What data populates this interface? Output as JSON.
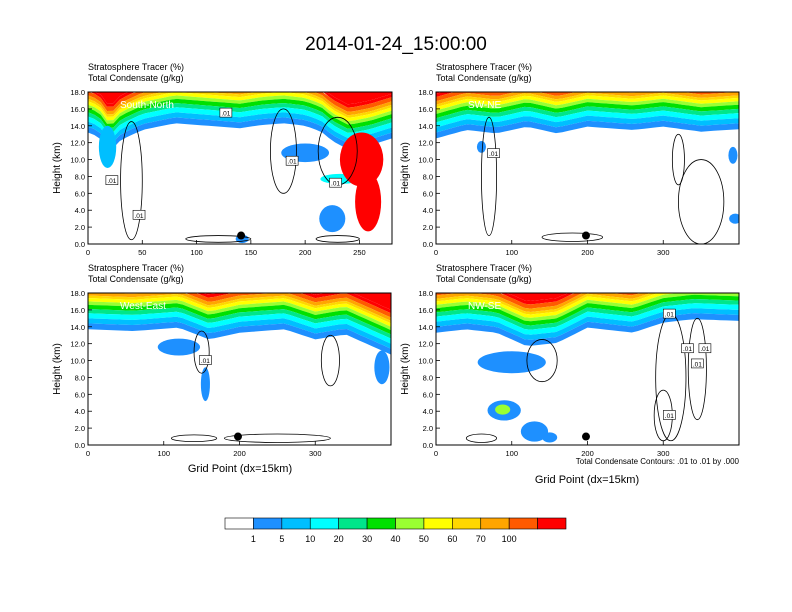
{
  "title": "2014-01-24_15:00:00",
  "panel_headers": {
    "line1": "Stratosphere Tracer   (%)",
    "line2": "Total Condensate   (g/kg)"
  },
  "ylabel": "Height (km)",
  "xlabel": "Grid Point (dx=15km)",
  "contour_info": "Total Condensate Contours: .01 to .01 by .000",
  "colors": {
    "levels": [
      "#ffffff",
      "#1e90ff",
      "#00bfff",
      "#00ffff",
      "#00e68a",
      "#00e000",
      "#9aff32",
      "#ffff00",
      "#ffd700",
      "#ffa500",
      "#ff5a00",
      "#ff0000"
    ],
    "contour": "#000000"
  },
  "colorbar": {
    "labels": [
      "1",
      "5",
      "10",
      "20",
      "30",
      "40",
      "50",
      "60",
      "70",
      "100"
    ]
  },
  "chart_data": [
    {
      "type": "heatmap",
      "name": "South-North",
      "xlim": [
        0,
        280
      ],
      "ylim": [
        0,
        18
      ],
      "xticks": [
        "0",
        "50",
        "100",
        "150",
        "200",
        "250"
      ],
      "xtick_values": [
        0,
        50,
        100,
        150,
        200,
        250
      ],
      "yticks": [
        "0.0",
        "2.0",
        "4.0",
        "6.0",
        "8.0",
        "10.0",
        "12.0",
        "14.0",
        "16.0",
        "18.0"
      ],
      "tracer_top_km": [
        [
          0,
          14.5
        ],
        [
          10,
          14.0
        ],
        [
          20,
          12.2
        ],
        [
          30,
          13.6
        ],
        [
          50,
          14.8
        ],
        [
          80,
          15.6
        ],
        [
          110,
          15.3
        ],
        [
          140,
          15.0
        ],
        [
          160,
          15.4
        ],
        [
          180,
          15.6
        ],
        [
          200,
          15.3
        ],
        [
          215,
          14.6
        ],
        [
          225,
          13.5
        ],
        [
          240,
          12.5
        ],
        [
          260,
          13.0
        ],
        [
          280,
          13.8
        ]
      ],
      "markers": [
        {
          "x": 141,
          "y": 1.0
        }
      ],
      "contour_labels": [
        {
          "text": ".01",
          "x": 127,
          "y": 15.5
        },
        {
          "text": ".01",
          "x": 47,
          "y": 3.4
        },
        {
          "text": ".01",
          "x": 22,
          "y": 7.5
        },
        {
          "text": ".01",
          "x": 188,
          "y": 9.8
        },
        {
          "text": ".01",
          "x": 228,
          "y": 7.2
        }
      ]
    },
    {
      "type": "heatmap",
      "name": "SW-NE",
      "xlim": [
        0,
        400
      ],
      "ylim": [
        0,
        18
      ],
      "xticks": [
        "0",
        "100",
        "200",
        "300"
      ],
      "xtick_values": [
        0,
        100,
        200,
        300
      ],
      "yticks": [
        "0.0",
        "2.0",
        "4.0",
        "6.0",
        "8.0",
        "10.0",
        "12.0",
        "14.0",
        "16.0",
        "18.0"
      ],
      "tracer_top_km": [
        [
          0,
          13.8
        ],
        [
          40,
          14.8
        ],
        [
          80,
          14.4
        ],
        [
          120,
          15.2
        ],
        [
          160,
          14.4
        ],
        [
          200,
          15.2
        ],
        [
          260,
          14.8
        ],
        [
          300,
          15.2
        ],
        [
          350,
          14.6
        ],
        [
          400,
          14.9
        ]
      ],
      "markers": [
        {
          "x": 198,
          "y": 1.0
        }
      ],
      "contour_labels": [
        {
          "text": ".01",
          "x": 76,
          "y": 10.7
        }
      ]
    },
    {
      "type": "heatmap",
      "name": "West-East",
      "xlim": [
        0,
        400
      ],
      "ylim": [
        0,
        18
      ],
      "xticks": [
        "0",
        "100",
        "200",
        "300"
      ],
      "xtick_values": [
        0,
        100,
        200,
        300
      ],
      "yticks": [
        "0.0",
        "2.0",
        "4.0",
        "6.0",
        "8.0",
        "10.0",
        "12.0",
        "14.0",
        "16.0",
        "18.0"
      ],
      "tracer_top_km": [
        [
          0,
          15.0
        ],
        [
          60,
          14.8
        ],
        [
          120,
          15.2
        ],
        [
          160,
          13.8
        ],
        [
          200,
          14.6
        ],
        [
          260,
          15.0
        ],
        [
          300,
          13.8
        ],
        [
          340,
          14.4
        ],
        [
          400,
          12.0
        ]
      ],
      "markers": [
        {
          "x": 198,
          "y": 1.0
        }
      ],
      "contour_labels": [
        {
          "text": ".01",
          "x": 155,
          "y": 10.0
        }
      ]
    },
    {
      "type": "heatmap",
      "name": "NW-SE",
      "xlim": [
        0,
        400
      ],
      "ylim": [
        0,
        18
      ],
      "xticks": [
        "0",
        "100",
        "200",
        "300"
      ],
      "xtick_values": [
        0,
        100,
        200,
        300
      ],
      "yticks": [
        "0.0",
        "2.0",
        "4.0",
        "6.0",
        "8.0",
        "10.0",
        "12.0",
        "14.0",
        "16.0",
        "18.0"
      ],
      "tracer_top_km": [
        [
          0,
          14.6
        ],
        [
          40,
          15.0
        ],
        [
          80,
          14.6
        ],
        [
          120,
          13.0
        ],
        [
          160,
          13.4
        ],
        [
          200,
          15.2
        ],
        [
          260,
          14.6
        ],
        [
          300,
          15.8
        ],
        [
          340,
          16.2
        ],
        [
          400,
          16.0
        ]
      ],
      "markers": [
        {
          "x": 198,
          "y": 1.0
        }
      ],
      "contour_labels": [
        {
          "text": ".01",
          "x": 308,
          "y": 15.5
        },
        {
          "text": ".01",
          "x": 332,
          "y": 11.4
        },
        {
          "text": ".01",
          "x": 355,
          "y": 11.4
        },
        {
          "text": ".01",
          "x": 345,
          "y": 9.6
        },
        {
          "text": ".01",
          "x": 308,
          "y": 3.5
        }
      ]
    }
  ]
}
